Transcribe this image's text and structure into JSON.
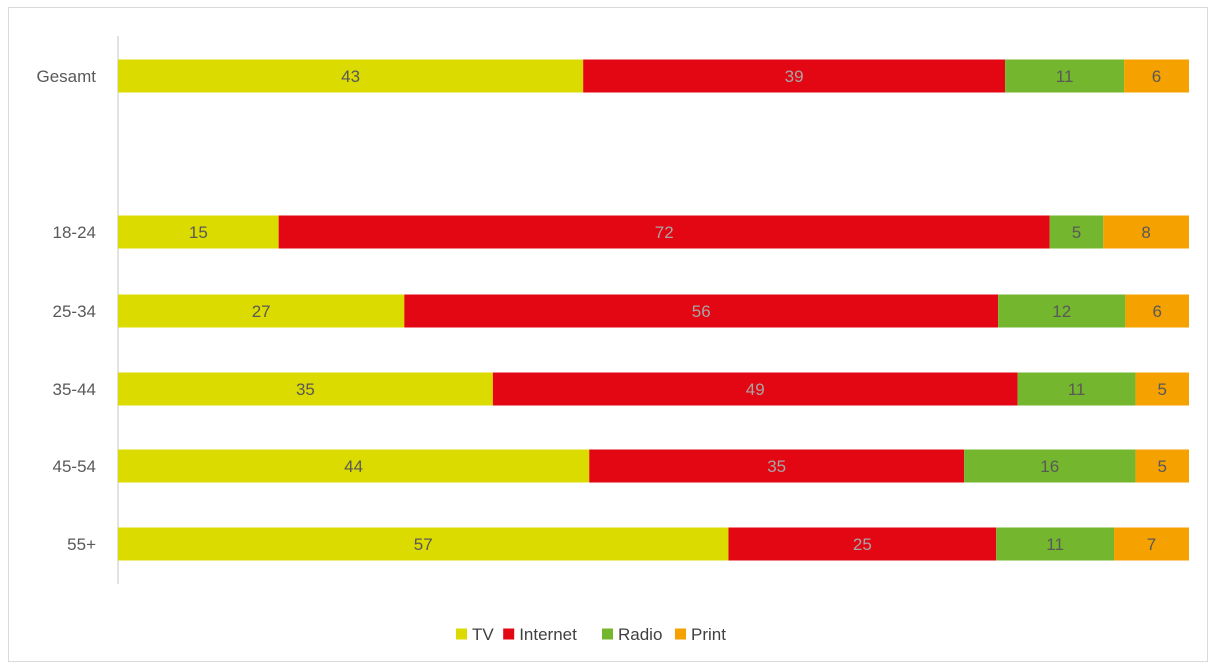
{
  "chart_data": {
    "type": "bar",
    "orientation": "horizontal",
    "stacked": true,
    "percent_stacked": true,
    "categories": [
      "Gesamt",
      "18-24",
      "25-34",
      "35-44",
      "45-54",
      "55+"
    ],
    "series": [
      {
        "name": "TV",
        "color": "#dbdb00",
        "label_color": "#595959",
        "values": [
          43,
          15,
          27,
          35,
          44,
          57
        ]
      },
      {
        "name": "Internet",
        "color": "#e30613",
        "label_color": "#a6a6a6",
        "values": [
          39,
          72,
          56,
          49,
          35,
          25
        ]
      },
      {
        "name": "Radio",
        "color": "#74b72e",
        "label_color": "#595959",
        "values": [
          11,
          5,
          12,
          11,
          16,
          11
        ]
      },
      {
        "name": "Print",
        "color": "#f5a100",
        "label_color": "#595959",
        "values": [
          6,
          8,
          6,
          5,
          5,
          7
        ]
      }
    ],
    "legend_position": "bottom",
    "grid": false,
    "axis_line_color": "#d9d9d9"
  }
}
